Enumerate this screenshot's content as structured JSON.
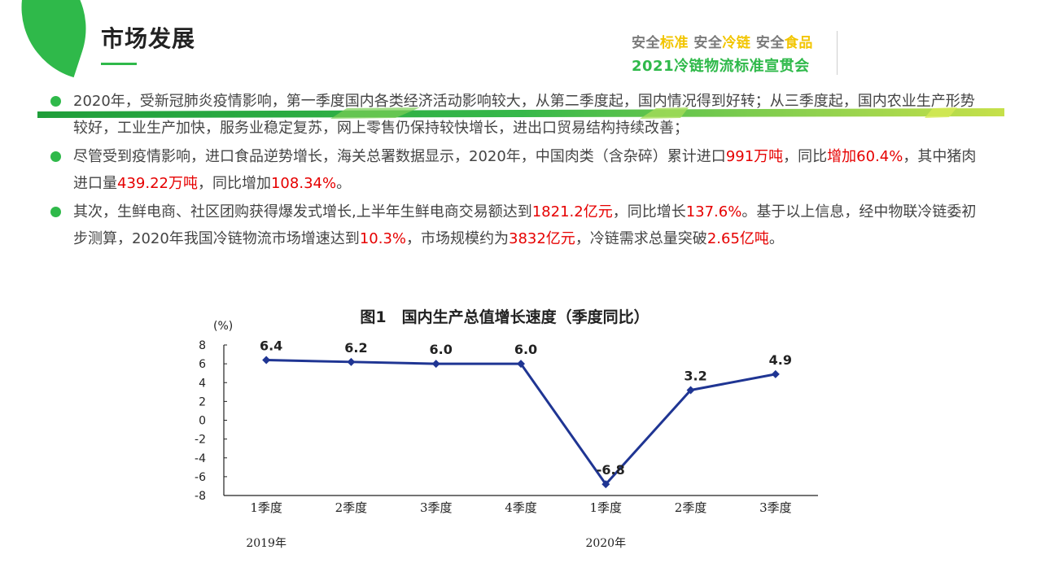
{
  "header": {
    "title": "市场发展",
    "brand_parts": [
      {
        "text": "安全",
        "color": "gray"
      },
      {
        "text": "标准",
        "color": "yellow"
      },
      {
        "text": " 安全",
        "color": "gray"
      },
      {
        "text": "冷链",
        "color": "yellow"
      },
      {
        "text": " 安全",
        "color": "gray"
      },
      {
        "text": "食品",
        "color": "yellow"
      }
    ],
    "brand_subtitle": "2021冷链物流标准宣贯会"
  },
  "colors": {
    "accent": "#2fb94a",
    "highlight": "#e60000",
    "line": "#1f3593"
  },
  "bullets": [
    [
      {
        "t": "2020年，受新冠肺炎疫情影响，第一季度国内各类经济活动影响较大，从第二季度起，国内情况得到好转；从三季度起，国内农业生产形势较好，工业生产加快，服务业稳定复苏，网上零售仍保持较快增长，进出口贸易结构持续改善；"
      }
    ],
    [
      {
        "t": "尽管受到疫情影响，进口食品逆势增长，海关总署数据显示，2020年，中国肉类（含杂碎）累计进口"
      },
      {
        "t": "991万吨",
        "hl": true
      },
      {
        "t": "，同比"
      },
      {
        "t": "增加60.4%",
        "hl": true
      },
      {
        "t": "，其中猪肉进口量"
      },
      {
        "t": "439.22万吨",
        "hl": true
      },
      {
        "t": "，同比增加"
      },
      {
        "t": "108.34%",
        "hl": true
      },
      {
        "t": "。"
      }
    ],
    [
      {
        "t": "其次，生鲜电商、社区团购获得爆发式增长,上半年生鲜电商交易额达到"
      },
      {
        "t": "1821.2亿元",
        "hl": true
      },
      {
        "t": "，同比增长"
      },
      {
        "t": "137.6%",
        "hl": true
      },
      {
        "t": "。基于以上信息，经中物联冷链委初步测算，2020年我国冷链物流市场增速达到"
      },
      {
        "t": "10.3%",
        "hl": true
      },
      {
        "t": "，市场规模约为"
      },
      {
        "t": "3832亿元",
        "hl": true
      },
      {
        "t": "，冷链需求总量突破"
      },
      {
        "t": "2.65亿吨",
        "hl": true
      },
      {
        "t": "。"
      }
    ]
  ],
  "chart_data": {
    "type": "line",
    "title": "图1　国内生产总值增长速度（季度同比）",
    "ylabel": "(%)",
    "xlabel": "",
    "categories": [
      "1季度",
      "2季度",
      "3季度",
      "4季度",
      "1季度",
      "2季度",
      "3季度"
    ],
    "year_labels": [
      {
        "label": "2019年",
        "category_index": 0
      },
      {
        "label": "2020年",
        "category_index": 4
      }
    ],
    "series": [
      {
        "values": [
          6.4,
          6.2,
          6.0,
          6.0,
          -6.8,
          3.2,
          4.9
        ]
      }
    ],
    "data_labels": [
      "6.4",
      "6.2",
      "6.0",
      "6.0",
      "-6.8",
      "3.2",
      "4.9"
    ],
    "yticks": [
      8,
      6,
      4,
      2,
      0,
      -2,
      -4,
      -6,
      -8
    ],
    "ytick_labels": [
      "8",
      "6",
      "4",
      "2",
      "0",
      "-2",
      "-4",
      "-6",
      "-8"
    ],
    "ylim": [
      -8,
      8
    ],
    "grid": false,
    "legend": "none"
  }
}
